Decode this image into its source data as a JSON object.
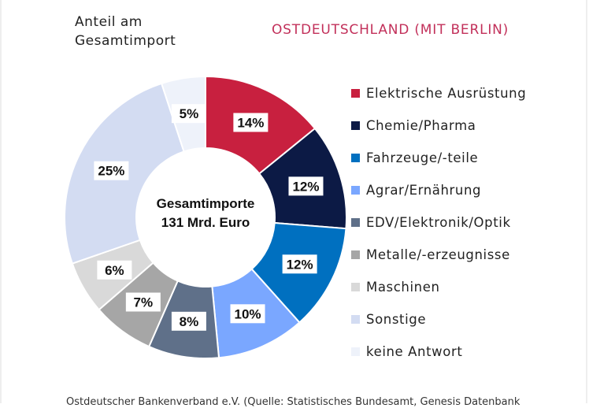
{
  "chart_data": {
    "type": "pie",
    "donut": true,
    "ylabel": "Anteil am Gesamtimport",
    "subtitle": "OSTDEUTSCHLAND (MIT BERLIN)",
    "center_label": [
      "Gesamtimporte",
      "131 Mrd. Euro"
    ],
    "legend_position": "right",
    "categories": [
      "Elektrische Ausrüstung",
      "Chemie/Pharma",
      "Fahrzeuge/-teile",
      "Agrar/Ernährung",
      "EDV/Elektronik/Optik",
      "Metalle/-erzeugnisse",
      "Maschinen",
      "Sonstige",
      "keine Antwort"
    ],
    "values": [
      14,
      12,
      12,
      10,
      8,
      7,
      6,
      25,
      5
    ],
    "data_labels": [
      "14%",
      "12%",
      "12%",
      "10%",
      "8%",
      "7%",
      "6%",
      "25%",
      "5%"
    ],
    "colors": [
      "#c8203f",
      "#0c1a45",
      "#0070c0",
      "#7aa7ff",
      "#5f7089",
      "#a6a6a6",
      "#d9d9d9",
      "#d3dcf2",
      "#eef2fa"
    ]
  },
  "subtitle_color": "#c2305a",
  "footer": "Ostdeutscher Bankenverband e.V. (Quelle: Statistisches Bundesamt, Genesis Datenbank"
}
